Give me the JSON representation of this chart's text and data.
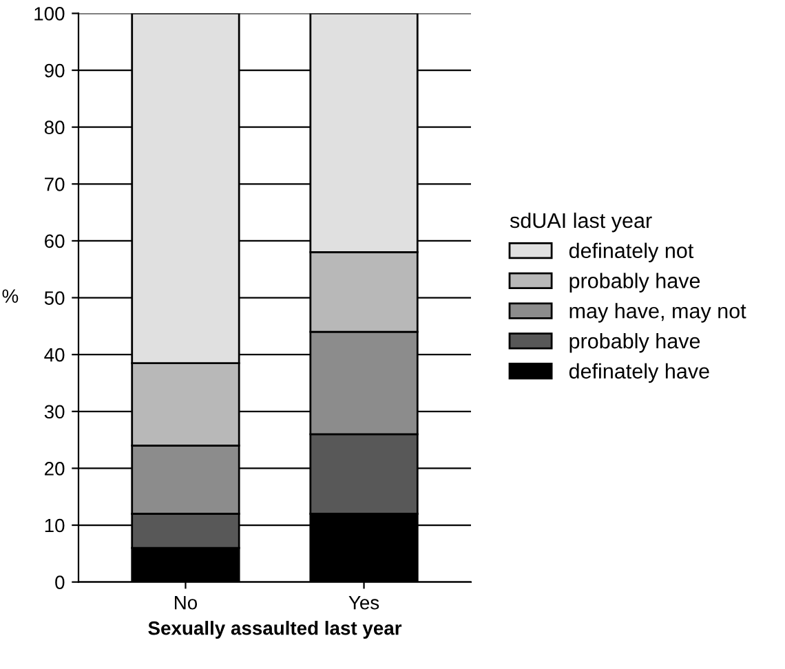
{
  "chart_data": {
    "type": "bar",
    "stacked": true,
    "xlabel": "Sexually assaulted last year",
    "ylabel": "%",
    "legend_title": "sdUAI last year",
    "categories": [
      "No",
      "Yes"
    ],
    "series": [
      {
        "name": "definately have",
        "color": "#000000",
        "values": [
          6,
          12
        ]
      },
      {
        "name": "probably have",
        "color": "#585858",
        "values": [
          6,
          14
        ]
      },
      {
        "name": "may have, may not",
        "color": "#8c8c8c",
        "values": [
          12,
          18
        ]
      },
      {
        "name": "probably have",
        "color": "#b8b8b8",
        "values": [
          14.5,
          14
        ]
      },
      {
        "name": "definately not",
        "color": "#e0e0e0",
        "values": [
          61.5,
          42
        ]
      }
    ],
    "ylim": [
      0,
      100
    ],
    "yticks": [
      0,
      10,
      20,
      30,
      40,
      50,
      60,
      70,
      80,
      90,
      100
    ],
    "grid": "y",
    "legend": "right"
  }
}
